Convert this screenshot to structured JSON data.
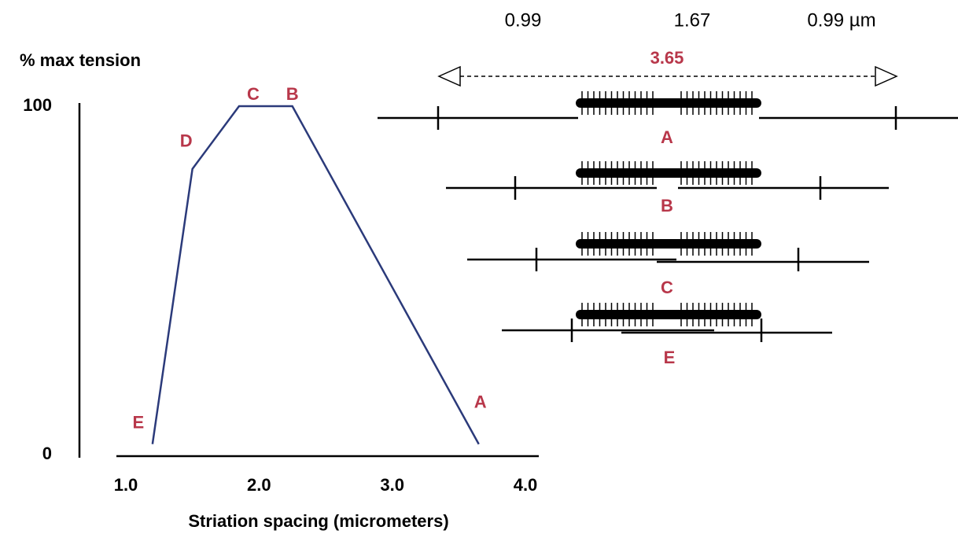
{
  "chart_data": {
    "type": "line",
    "y_label": "% max tension",
    "x_label": "Striation spacing (micrometers)",
    "x": [
      1.2,
      1.5,
      1.85,
      2.25,
      3.65
    ],
    "y": [
      3,
      82,
      100,
      100,
      3
    ],
    "point_labels": [
      "E",
      "D",
      "C",
      "B",
      "A"
    ],
    "color": "#2b3a7a",
    "label_color": "#b8374a",
    "xlim": [
      1.0,
      4.0
    ],
    "xticks": [
      {
        "value": 1.0,
        "label": "1.0"
      },
      {
        "value": 2.0,
        "label": "2.0"
      },
      {
        "value": 3.0,
        "label": "3.0"
      },
      {
        "value": 4.0,
        "label": "4.0"
      }
    ],
    "ylim": [
      0,
      100
    ],
    "yticks": [
      0,
      100
    ]
  },
  "diagram": {
    "widths": [
      "0.99",
      "1.67",
      "0.99 µm"
    ],
    "total": "3.65",
    "sarcomere_labels": [
      "A",
      "B",
      "C",
      "E"
    ]
  }
}
